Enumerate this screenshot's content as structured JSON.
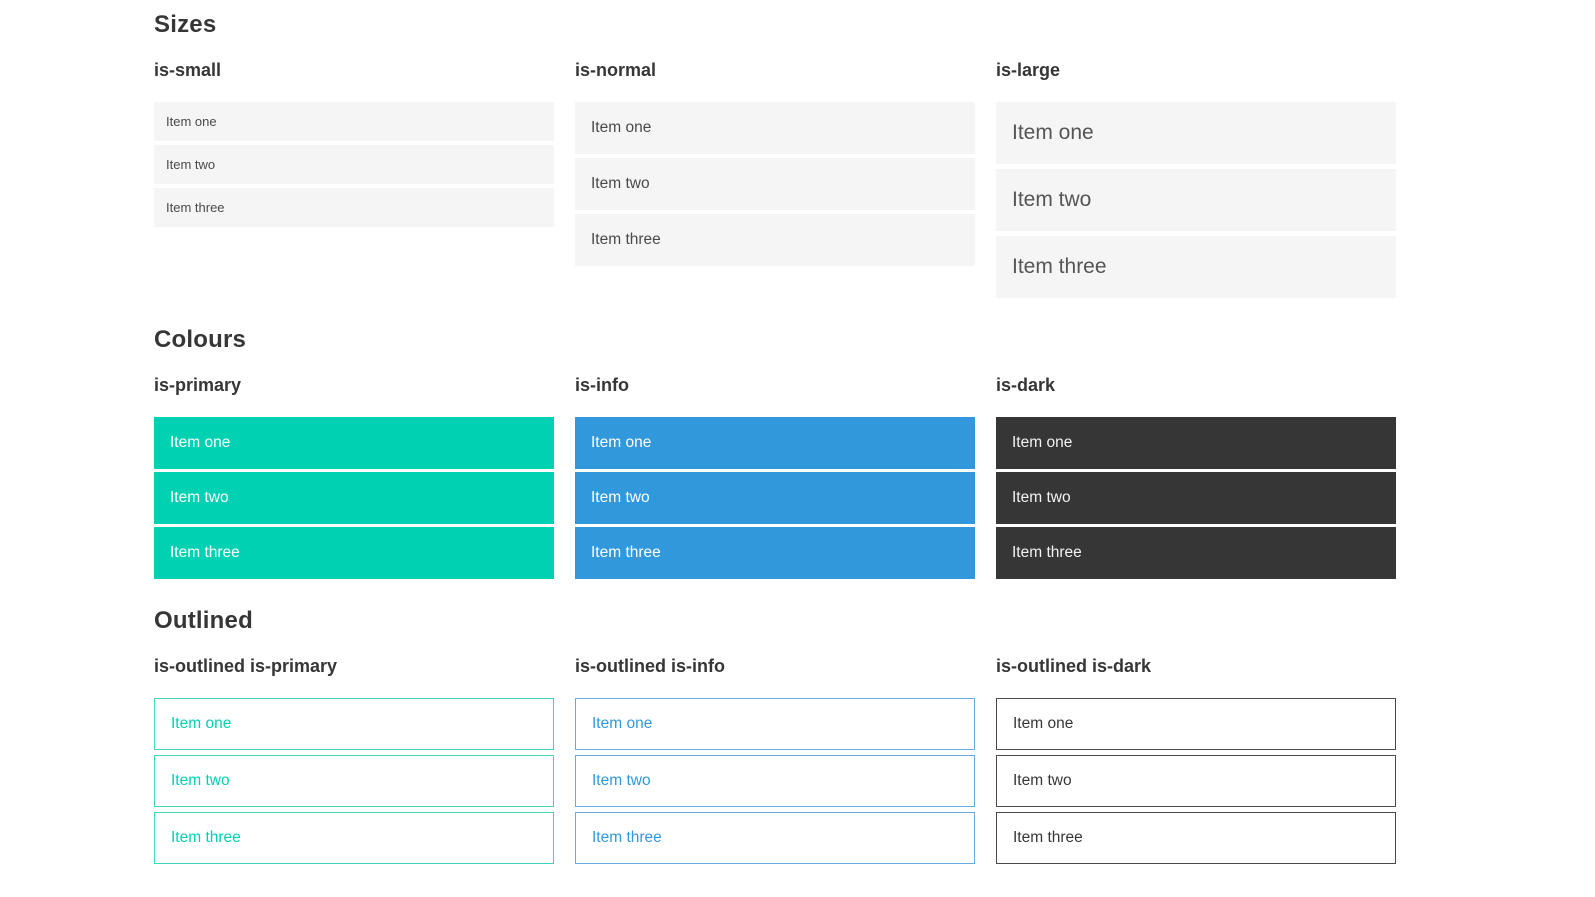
{
  "colors": {
    "primary": "#00d1b2",
    "info": "#3298dc",
    "dark": "#363636",
    "item_background": "#f5f5f5",
    "item_text": "#4a4a4a",
    "heading_text": "#363636",
    "item_text_on_color": "#ffffff"
  },
  "sections": [
    {
      "title": "Sizes",
      "groups": [
        {
          "label": "is-small",
          "items": [
            "Item one",
            "Item two",
            "Item three"
          ]
        },
        {
          "label": "is-normal",
          "items": [
            "Item one",
            "Item two",
            "Item three"
          ]
        },
        {
          "label": "is-large",
          "items": [
            "Item one",
            "Item two",
            "Item three"
          ]
        }
      ]
    },
    {
      "title": "Colours",
      "groups": [
        {
          "label": "is-primary",
          "items": [
            "Item one",
            "Item two",
            "Item three"
          ]
        },
        {
          "label": "is-info",
          "items": [
            "Item one",
            "Item two",
            "Item three"
          ]
        },
        {
          "label": "is-dark",
          "items": [
            "Item one",
            "Item two",
            "Item three"
          ]
        }
      ]
    },
    {
      "title": "Outlined",
      "groups": [
        {
          "label": "is-outlined is-primary",
          "items": [
            "Item one",
            "Item two",
            "Item three"
          ]
        },
        {
          "label": "is-outlined is-info",
          "items": [
            "Item one",
            "Item two",
            "Item three"
          ]
        },
        {
          "label": "is-outlined is-dark",
          "items": [
            "Item one",
            "Item two",
            "Item three"
          ]
        }
      ]
    }
  ]
}
